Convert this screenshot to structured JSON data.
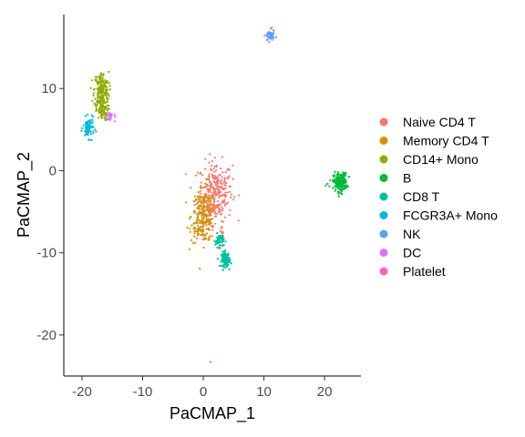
{
  "chart_data": {
    "type": "scatter",
    "xlabel": "PaCMAP_1",
    "ylabel": "PaCMAP_2",
    "xlim": [
      -23,
      26
    ],
    "ylim": [
      -25,
      19
    ],
    "xticks": [
      -20,
      -10,
      0,
      10,
      20
    ],
    "yticks": [
      -20,
      -10,
      0,
      10
    ],
    "grid": false,
    "legend_position": "right",
    "series": [
      {
        "name": "Naive CD4 T",
        "color": "#F8766D",
        "clusters": [
          {
            "cx": 2.0,
            "cy": -2.5,
            "sx": 1.4,
            "sy": 1.8,
            "n": 260
          },
          {
            "cx": 1.0,
            "cy": -5.0,
            "sx": 1.0,
            "sy": 1.0,
            "n": 60
          },
          {
            "cx": 3.0,
            "cy": -8.0,
            "sx": 0.3,
            "sy": 0.6,
            "n": 8
          }
        ],
        "points": [
          [
            1.2,
            -23.3
          ],
          [
            2.6,
            -9.3
          ],
          [
            -0.8,
            -7.4
          ]
        ]
      },
      {
        "name": "Memory CD4 T",
        "color": "#D39200",
        "clusters": [
          {
            "cx": 0.0,
            "cy": -5.5,
            "sx": 1.0,
            "sy": 1.6,
            "n": 200
          },
          {
            "cx": -1.0,
            "cy": -7.5,
            "sx": 0.5,
            "sy": 0.5,
            "n": 15
          }
        ],
        "points": [
          [
            -1.5,
            -8.0
          ],
          [
            -1.2,
            -3.5
          ],
          [
            0.5,
            -8.3
          ]
        ]
      },
      {
        "name": "CD14+ Mono",
        "color": "#93AA00",
        "clusters": [
          {
            "cx": -16.8,
            "cy": 9.8,
            "sx": 0.6,
            "sy": 1.1,
            "n": 200
          },
          {
            "cx": -16.7,
            "cy": 7.3,
            "sx": 0.5,
            "sy": 0.6,
            "n": 70
          }
        ],
        "points": [
          [
            -17.5,
            11.4
          ],
          [
            -17.7,
            11.0
          ],
          [
            -15.8,
            8.4
          ]
        ]
      },
      {
        "name": "B",
        "color": "#00BA38",
        "clusters": [
          {
            "cx": 22.6,
            "cy": -1.4,
            "sx": 0.55,
            "sy": 0.55,
            "n": 220
          }
        ],
        "points": [
          [
            20.2,
            -1.8
          ],
          [
            20.5,
            -1.6
          ],
          [
            20.8,
            -1.9
          ]
        ]
      },
      {
        "name": "CD8 T",
        "color": "#00C19F",
        "clusters": [
          {
            "cx": 3.7,
            "cy": -10.8,
            "sx": 0.35,
            "sy": 0.45,
            "n": 110
          },
          {
            "cx": 2.7,
            "cy": -8.5,
            "sx": 0.35,
            "sy": 0.4,
            "n": 60
          }
        ],
        "points": [
          [
            4.3,
            -12.0
          ],
          [
            2.3,
            -7.6
          ]
        ]
      },
      {
        "name": "FCGR3A+ Mono",
        "color": "#00B9E3",
        "clusters": [
          {
            "cx": -18.9,
            "cy": 5.2,
            "sx": 0.45,
            "sy": 0.6,
            "n": 80
          }
        ],
        "points": [
          [
            -19.5,
            4.3
          ],
          [
            -18.3,
            6.2
          ]
        ]
      },
      {
        "name": "NK",
        "color": "#619CFF",
        "clusters": [
          {
            "cx": 11.0,
            "cy": 16.4,
            "sx": 0.35,
            "sy": 0.35,
            "n": 60
          }
        ],
        "points": [
          [
            10.5,
            15.9
          ],
          [
            11.6,
            17.1
          ]
        ]
      },
      {
        "name": "DC",
        "color": "#DB72FB",
        "clusters": [
          {
            "cx": -15.3,
            "cy": 6.6,
            "sx": 0.35,
            "sy": 0.3,
            "n": 25
          }
        ],
        "points": [
          [
            -14.6,
            6.0
          ]
        ]
      },
      {
        "name": "Platelet",
        "color": "#FF61C3",
        "clusters": [],
        "points": []
      }
    ]
  }
}
